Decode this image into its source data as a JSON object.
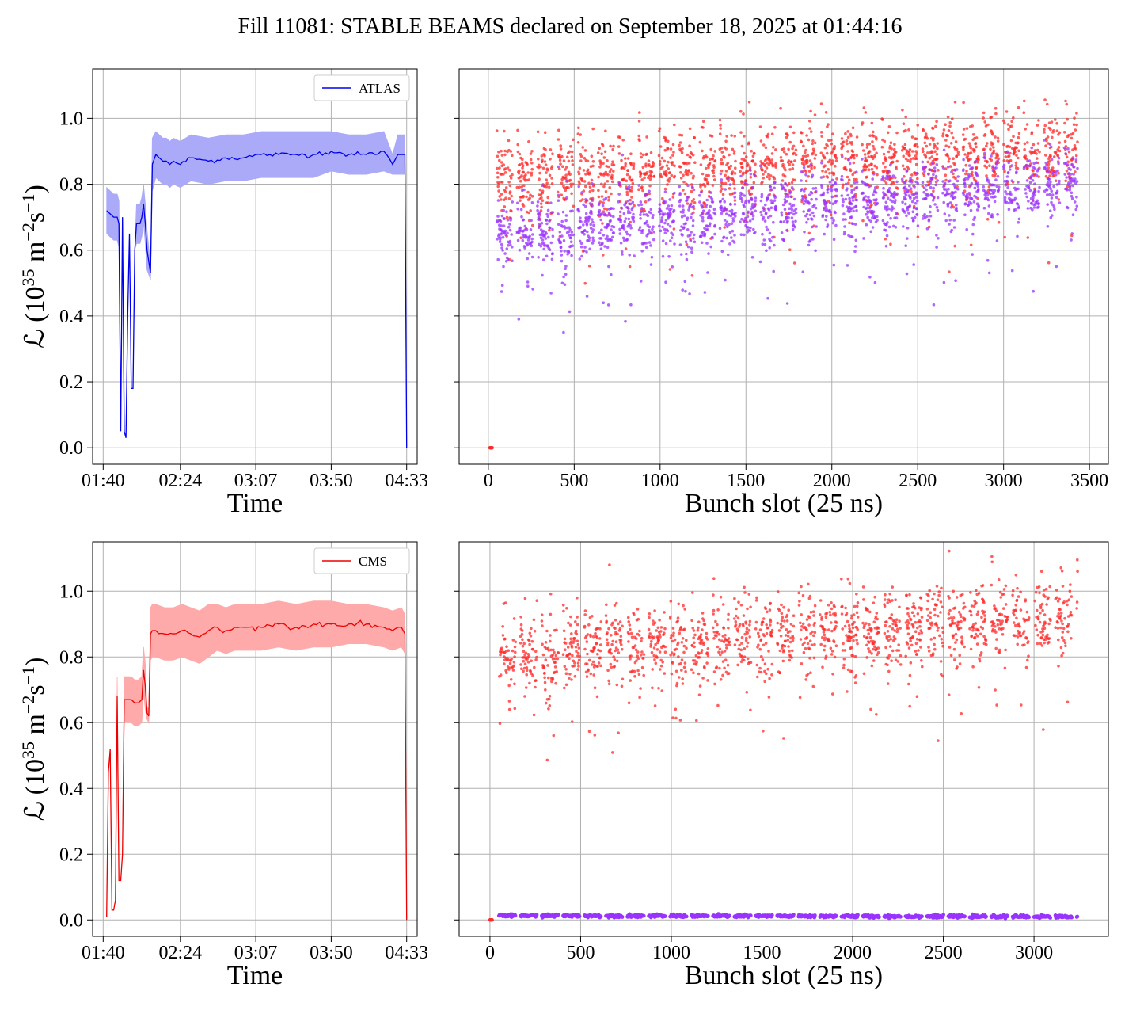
{
  "title": "Fill 11081: STABLE BEAMS declared on September 18, 2025 at 01:44:16",
  "colors": {
    "atlas_line": "#0000ee",
    "atlas_band": "#aaaaf8",
    "cms_line": "#ee0000",
    "cms_band": "#ffaaaa",
    "bunch_red": "#ff2a2a",
    "bunch_purple": "#9933ff",
    "grid": "#b0b0b0"
  },
  "chart_data": [
    {
      "type": "line",
      "panel": "top-left",
      "xlabel": "Time",
      "ylabel_main": "ℒ (10",
      "ylabel_exp": "35",
      "ylabel_rest": " m",
      "ylabel_exp2": "−2",
      "ylabel_rest2": "s",
      "ylabel_exp3": "−1",
      "ylabel_end": ")",
      "xticks": [
        "01:40",
        "02:24",
        "03:07",
        "03:50",
        "04:33"
      ],
      "xtick_minutes": [
        100,
        144,
        187,
        230,
        273
      ],
      "xlim": [
        94,
        279
      ],
      "ylim": [
        -0.05,
        1.15
      ],
      "yticks": [
        0.0,
        0.2,
        0.4,
        0.6,
        0.8,
        1.0
      ],
      "ytick_labels": [
        "0.0",
        "0.2",
        "0.4",
        "0.6",
        "0.8",
        "1.0"
      ],
      "grid": true,
      "legend": "top-right",
      "series": [
        {
          "name": "ATLAS",
          "band": "±1σ",
          "x": [
            102,
            104,
            106,
            108,
            109,
            110,
            111,
            112,
            113,
            114,
            115,
            116,
            117,
            118,
            119,
            120,
            121,
            122,
            123,
            124,
            125,
            127,
            128,
            130,
            132,
            134,
            136,
            138,
            140,
            144,
            150,
            160,
            170,
            180,
            190,
            200,
            210,
            220,
            230,
            240,
            250,
            260,
            265,
            268,
            270,
            272,
            273
          ],
          "y": [
            0.72,
            0.71,
            0.7,
            0.7,
            0.68,
            0.05,
            0.7,
            0.05,
            0.03,
            0.4,
            0.65,
            0.18,
            0.18,
            0.6,
            0.68,
            0.68,
            0.68,
            0.7,
            0.74,
            0.68,
            0.6,
            0.53,
            0.86,
            0.89,
            0.88,
            0.87,
            0.87,
            0.86,
            0.87,
            0.86,
            0.88,
            0.87,
            0.88,
            0.88,
            0.89,
            0.89,
            0.89,
            0.89,
            0.9,
            0.89,
            0.89,
            0.9,
            0.86,
            0.89,
            0.89,
            0.89,
            0.0
          ],
          "spread": [
            0.07,
            0.07,
            0.07,
            0.07,
            0.07,
            0.0,
            0.0,
            0.0,
            0.0,
            0.0,
            0.0,
            0.0,
            0.0,
            0.0,
            0.06,
            0.06,
            0.06,
            0.06,
            0.06,
            0.06,
            0.06,
            0.02,
            0.08,
            0.07,
            0.07,
            0.07,
            0.07,
            0.07,
            0.07,
            0.07,
            0.07,
            0.07,
            0.07,
            0.07,
            0.07,
            0.07,
            0.07,
            0.07,
            0.06,
            0.06,
            0.06,
            0.06,
            0.03,
            0.06,
            0.06,
            0.06,
            0.0
          ]
        }
      ]
    },
    {
      "type": "scatter",
      "panel": "top-right",
      "xlabel": "Bunch slot (25 ns)",
      "xticks": [
        0,
        500,
        1000,
        1500,
        2000,
        2500,
        3000,
        3500
      ],
      "xtick_labels": [
        "0",
        "500",
        "1000",
        "1500",
        "2000",
        "2500",
        "3000",
        "3500"
      ],
      "xlim": [
        -170,
        3610
      ],
      "ylim": [
        -0.05,
        1.15
      ],
      "yticks": [
        0.0,
        0.2,
        0.4,
        0.6,
        0.8,
        1.0
      ],
      "grid": true,
      "series": [
        {
          "color_role": "red",
          "x_range": [
            50,
            3430
          ],
          "y_start": 0.81,
          "y_end": 0.9,
          "scatter": 0.06
        },
        {
          "color_role": "purple",
          "x_range": [
            50,
            3430
          ],
          "y_start": 0.64,
          "y_end": 0.8,
          "scatter": 0.05
        },
        {
          "color_role": "red",
          "x": [
            10,
            12,
            14,
            16,
            18,
            20,
            22
          ],
          "y": [
            0,
            0,
            0,
            0,
            0,
            0,
            0
          ]
        }
      ]
    },
    {
      "type": "line",
      "panel": "bottom-left",
      "xlabel": "Time",
      "ylabel_main": "ℒ (10",
      "ylabel_exp": "35",
      "ylabel_rest": " m",
      "ylabel_exp2": "−2",
      "ylabel_rest2": "s",
      "ylabel_exp3": "−1",
      "ylabel_end": ")",
      "xticks": [
        "01:40",
        "02:24",
        "03:07",
        "03:50",
        "04:33"
      ],
      "xtick_minutes": [
        100,
        144,
        187,
        230,
        273
      ],
      "xlim": [
        94,
        279
      ],
      "ylim": [
        -0.05,
        1.15
      ],
      "yticks": [
        0.0,
        0.2,
        0.4,
        0.6,
        0.8,
        1.0
      ],
      "ytick_labels": [
        "0.0",
        "0.2",
        "0.4",
        "0.6",
        "0.8",
        "1.0"
      ],
      "grid": true,
      "legend": "top-right",
      "series": [
        {
          "name": "CMS",
          "band": "±1σ",
          "x": [
            102,
            103,
            104,
            105,
            106,
            107,
            108,
            109,
            110,
            111,
            112,
            114,
            116,
            118,
            120,
            122,
            123,
            124,
            125,
            126,
            127,
            128,
            130,
            135,
            140,
            145,
            150,
            155,
            160,
            165,
            170,
            175,
            180,
            190,
            200,
            210,
            220,
            230,
            240,
            250,
            260,
            265,
            270,
            272,
            273
          ],
          "y": [
            0.01,
            0.45,
            0.52,
            0.03,
            0.03,
            0.06,
            0.68,
            0.12,
            0.12,
            0.2,
            0.67,
            0.67,
            0.67,
            0.66,
            0.66,
            0.67,
            0.76,
            0.71,
            0.63,
            0.62,
            0.87,
            0.88,
            0.88,
            0.87,
            0.87,
            0.88,
            0.87,
            0.86,
            0.88,
            0.89,
            0.88,
            0.89,
            0.89,
            0.89,
            0.9,
            0.89,
            0.9,
            0.9,
            0.9,
            0.9,
            0.89,
            0.88,
            0.89,
            0.87,
            0.0
          ],
          "spread": [
            0.0,
            0.0,
            0.0,
            0.0,
            0.0,
            0.0,
            0.06,
            0.0,
            0.0,
            0.0,
            0.07,
            0.07,
            0.07,
            0.07,
            0.07,
            0.07,
            0.07,
            0.07,
            0.02,
            0.02,
            0.08,
            0.08,
            0.08,
            0.08,
            0.08,
            0.08,
            0.08,
            0.08,
            0.08,
            0.07,
            0.07,
            0.07,
            0.07,
            0.07,
            0.07,
            0.07,
            0.07,
            0.07,
            0.06,
            0.06,
            0.06,
            0.06,
            0.06,
            0.06,
            0.0
          ]
        }
      ]
    },
    {
      "type": "scatter",
      "panel": "bottom-right",
      "xlabel": "Bunch slot (25 ns)",
      "xticks": [
        0,
        500,
        1000,
        1500,
        2000,
        2500,
        3000
      ],
      "xtick_labels": [
        "0",
        "500",
        "1000",
        "1500",
        "2000",
        "2500",
        "3000"
      ],
      "xlim": [
        -170,
        3410
      ],
      "ylim": [
        -0.05,
        1.15
      ],
      "yticks": [
        0.0,
        0.2,
        0.4,
        0.6,
        0.8,
        1.0
      ],
      "grid": true,
      "series": [
        {
          "color_role": "red",
          "x_range": [
            50,
            3240
          ],
          "y_start": 0.8,
          "y_end": 0.92,
          "scatter": 0.06
        },
        {
          "color_role": "purple",
          "x_range": [
            50,
            3240
          ],
          "y_start": 0.013,
          "y_end": 0.01,
          "scatter": 0.002
        },
        {
          "color_role": "red",
          "x": [
            0,
            2,
            4,
            6,
            8,
            10,
            12
          ],
          "y": [
            0,
            0,
            0,
            0,
            0,
            0,
            0
          ]
        }
      ]
    }
  ]
}
